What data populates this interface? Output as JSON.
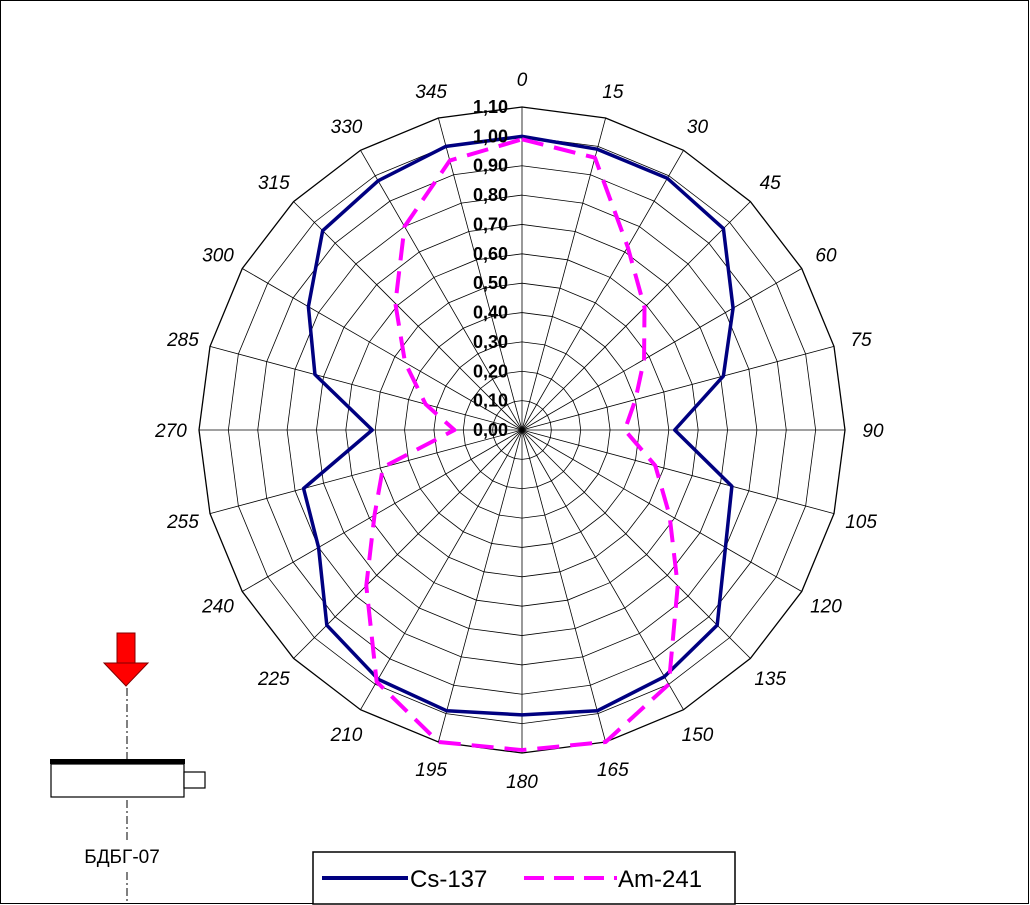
{
  "chart_data": {
    "type": "polar-line",
    "angle_labels": [
      "0",
      "15",
      "30",
      "45",
      "60",
      "75",
      "90",
      "105",
      "120",
      "135",
      "150",
      "165",
      "180",
      "195",
      "210",
      "225",
      "240",
      "255",
      "270",
      "285",
      "300",
      "315",
      "330",
      "345"
    ],
    "radial_labels": [
      "0,00",
      "0,10",
      "0,20",
      "0,30",
      "0,40",
      "0,50",
      "0,60",
      "0,70",
      "0,80",
      "0,90",
      "1,00",
      "1,10"
    ],
    "rlim": [
      0,
      1.1
    ],
    "grid": true,
    "series": [
      {
        "name": "Cs-137",
        "color": "#000080",
        "style": "solid",
        "angles": [
          0,
          15,
          30,
          45,
          60,
          75,
          90,
          105,
          120,
          135,
          150,
          165,
          180,
          195,
          210,
          225,
          240,
          255,
          270,
          285,
          300,
          315,
          330,
          345
        ],
        "values": [
          1.0,
          0.99,
          0.99,
          0.97,
          0.83,
          0.71,
          0.52,
          0.74,
          0.8,
          0.94,
          0.97,
          0.99,
          0.97,
          0.99,
          0.98,
          0.94,
          0.8,
          0.77,
          0.51,
          0.73,
          0.84,
          0.96,
          0.98,
          1.0
        ]
      },
      {
        "name": "Am-241",
        "color": "#ff00ff",
        "style": "dashed",
        "angles": [
          0,
          15,
          30,
          45,
          60,
          75,
          90,
          105,
          120,
          135,
          150,
          165,
          180,
          195,
          210,
          225,
          240,
          255,
          270,
          285,
          300,
          315,
          330,
          345
        ],
        "values": [
          0.99,
          0.96,
          0.72,
          0.59,
          0.48,
          0.4,
          0.35,
          0.47,
          0.58,
          0.75,
          1.0,
          1.1,
          1.09,
          1.1,
          0.99,
          0.75,
          0.58,
          0.49,
          0.23,
          0.34,
          0.46,
          0.61,
          0.8,
          0.95
        ]
      }
    ],
    "legend": "bottom"
  },
  "device_label": "БДБГ-07",
  "colors": {
    "arrow": "#ff0000",
    "grid": "#000000"
  },
  "icons": {
    "arrow": "radiation-direction-arrow-icon",
    "detector": "detector-icon"
  }
}
